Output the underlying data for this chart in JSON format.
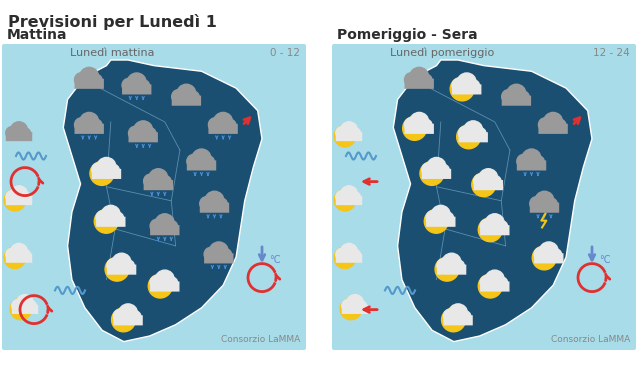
{
  "title": "Previsioni per Lunedì 1",
  "title_color": "#2d2d2d",
  "title_fontsize": 11.5,
  "bg_color": "#ffffff",
  "sea_color": "#a8dce9",
  "map_color": "#1b4f72",
  "map_border": "#ffffff",
  "province_color": "#6a9ec0",
  "left_panel": {
    "label": "Mattina",
    "sublabel": "Lunedì mattina",
    "time_range": "0 - 12"
  },
  "right_panel": {
    "label": "Pomeriggio - Sera",
    "sublabel": "Lunedì pomeriggio",
    "time_range": "12 - 24"
  },
  "label_color": "#2d2d2d",
  "label_fontsize": 10,
  "sublabel_color": "#666666",
  "sublabel_fontsize": 8,
  "time_color": "#888888",
  "time_fontsize": 7.5,
  "credit_text": "Consorzio LaMMA",
  "credit_fontsize": 6.5,
  "credit_color": "#888888",
  "cloud_dark": "#9a9a9a",
  "cloud_light": "#c8c8c8",
  "cloud_white": "#e8e8e8",
  "sun_color": "#f5c518",
  "rain_color": "#4a90d9",
  "thunder_color": "#f5c518",
  "wind_red": "#e03030",
  "wind_blue": "#6688cc"
}
